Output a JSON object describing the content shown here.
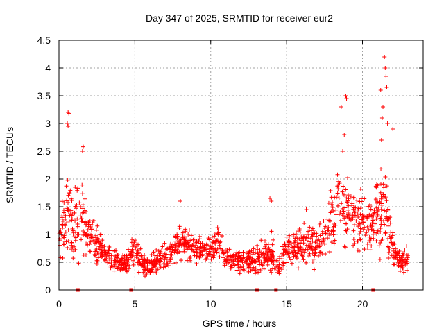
{
  "chart_data": {
    "type": "scatter",
    "title": "Day 347 of 2025, SRMTID for receiver eur2",
    "xlabel": "GPS time / hours",
    "ylabel": "SRMTID / TECUs",
    "xlim": [
      0,
      24
    ],
    "ylim": [
      0,
      4.5
    ],
    "x_ticks": [
      0,
      5,
      10,
      15,
      20
    ],
    "x_tick_labels": [
      "0",
      "5",
      "10",
      "15",
      "20"
    ],
    "y_ticks": [
      0,
      0.5,
      1,
      1.5,
      2,
      2.5,
      3,
      3.5,
      4,
      4.5
    ],
    "y_tick_labels": [
      "0",
      "0.5",
      "1",
      "1.5",
      "2",
      "2.5",
      "3",
      "3.5",
      "4",
      "4.5"
    ],
    "grid": true,
    "marker": "+",
    "series_color": "#ff0000",
    "outlier_points": [
      {
        "x": 0.6,
        "y": 3.2
      },
      {
        "x": 0.65,
        "y": 3.18
      },
      {
        "x": 0.55,
        "y": 3.0
      },
      {
        "x": 0.6,
        "y": 2.95
      },
      {
        "x": 1.6,
        "y": 2.58
      },
      {
        "x": 1.55,
        "y": 2.5
      },
      {
        "x": 8.0,
        "y": 1.6
      },
      {
        "x": 13.9,
        "y": 1.65
      },
      {
        "x": 14.0,
        "y": 1.6
      },
      {
        "x": 16.3,
        "y": 1.45
      },
      {
        "x": 18.6,
        "y": 3.3
      },
      {
        "x": 18.9,
        "y": 3.5
      },
      {
        "x": 18.95,
        "y": 3.45
      },
      {
        "x": 18.8,
        "y": 2.8
      },
      {
        "x": 18.7,
        "y": 2.5
      },
      {
        "x": 21.2,
        "y": 3.6
      },
      {
        "x": 21.45,
        "y": 4.2
      },
      {
        "x": 21.5,
        "y": 4.0
      },
      {
        "x": 21.55,
        "y": 3.85
      },
      {
        "x": 21.6,
        "y": 3.65
      },
      {
        "x": 21.35,
        "y": 3.3
      },
      {
        "x": 21.3,
        "y": 3.1
      },
      {
        "x": 21.65,
        "y": 3.0
      },
      {
        "x": 22.0,
        "y": 2.9
      },
      {
        "x": 21.25,
        "y": 2.7
      }
    ],
    "bottom_markers_x": [
      1.25,
      4.75,
      13.05,
      14.3,
      20.7
    ],
    "envelope": [
      {
        "x": 0.0,
        "y": 1.0,
        "spread": 0.5
      },
      {
        "x": 0.5,
        "y": 1.35,
        "spread": 0.75
      },
      {
        "x": 1.0,
        "y": 1.1,
        "spread": 0.6
      },
      {
        "x": 1.5,
        "y": 1.3,
        "spread": 0.75
      },
      {
        "x": 2.0,
        "y": 1.0,
        "spread": 0.5
      },
      {
        "x": 2.5,
        "y": 0.8,
        "spread": 0.35
      },
      {
        "x": 3.0,
        "y": 0.65,
        "spread": 0.25
      },
      {
        "x": 4.0,
        "y": 0.5,
        "spread": 0.2
      },
      {
        "x": 4.5,
        "y": 0.48,
        "spread": 0.2
      },
      {
        "x": 5.0,
        "y": 0.75,
        "spread": 0.35
      },
      {
        "x": 5.5,
        "y": 0.45,
        "spread": 0.2
      },
      {
        "x": 6.0,
        "y": 0.42,
        "spread": 0.2
      },
      {
        "x": 7.0,
        "y": 0.6,
        "spread": 0.25
      },
      {
        "x": 8.0,
        "y": 0.85,
        "spread": 0.35
      },
      {
        "x": 9.0,
        "y": 0.75,
        "spread": 0.3
      },
      {
        "x": 10.0,
        "y": 0.7,
        "spread": 0.25
      },
      {
        "x": 10.5,
        "y": 0.9,
        "spread": 0.35
      },
      {
        "x": 11.0,
        "y": 0.55,
        "spread": 0.25
      },
      {
        "x": 12.0,
        "y": 0.5,
        "spread": 0.22
      },
      {
        "x": 13.0,
        "y": 0.55,
        "spread": 0.25
      },
      {
        "x": 14.0,
        "y": 0.7,
        "spread": 0.35
      },
      {
        "x": 14.5,
        "y": 0.45,
        "spread": 0.25
      },
      {
        "x": 15.0,
        "y": 0.75,
        "spread": 0.3
      },
      {
        "x": 16.0,
        "y": 0.8,
        "spread": 0.35
      },
      {
        "x": 17.0,
        "y": 0.8,
        "spread": 0.35
      },
      {
        "x": 17.5,
        "y": 0.95,
        "spread": 0.4
      },
      {
        "x": 18.0,
        "y": 1.3,
        "spread": 0.6
      },
      {
        "x": 18.5,
        "y": 1.6,
        "spread": 0.7
      },
      {
        "x": 19.0,
        "y": 1.4,
        "spread": 0.6
      },
      {
        "x": 19.5,
        "y": 1.3,
        "spread": 0.6
      },
      {
        "x": 20.0,
        "y": 1.2,
        "spread": 0.55
      },
      {
        "x": 20.5,
        "y": 1.25,
        "spread": 0.6
      },
      {
        "x": 21.0,
        "y": 1.3,
        "spread": 0.7
      },
      {
        "x": 21.5,
        "y": 1.6,
        "spread": 0.9
      },
      {
        "x": 22.0,
        "y": 0.7,
        "spread": 0.35
      },
      {
        "x": 22.5,
        "y": 0.5,
        "spread": 0.2
      },
      {
        "x": 23.0,
        "y": 0.55,
        "spread": 0.25
      }
    ]
  }
}
